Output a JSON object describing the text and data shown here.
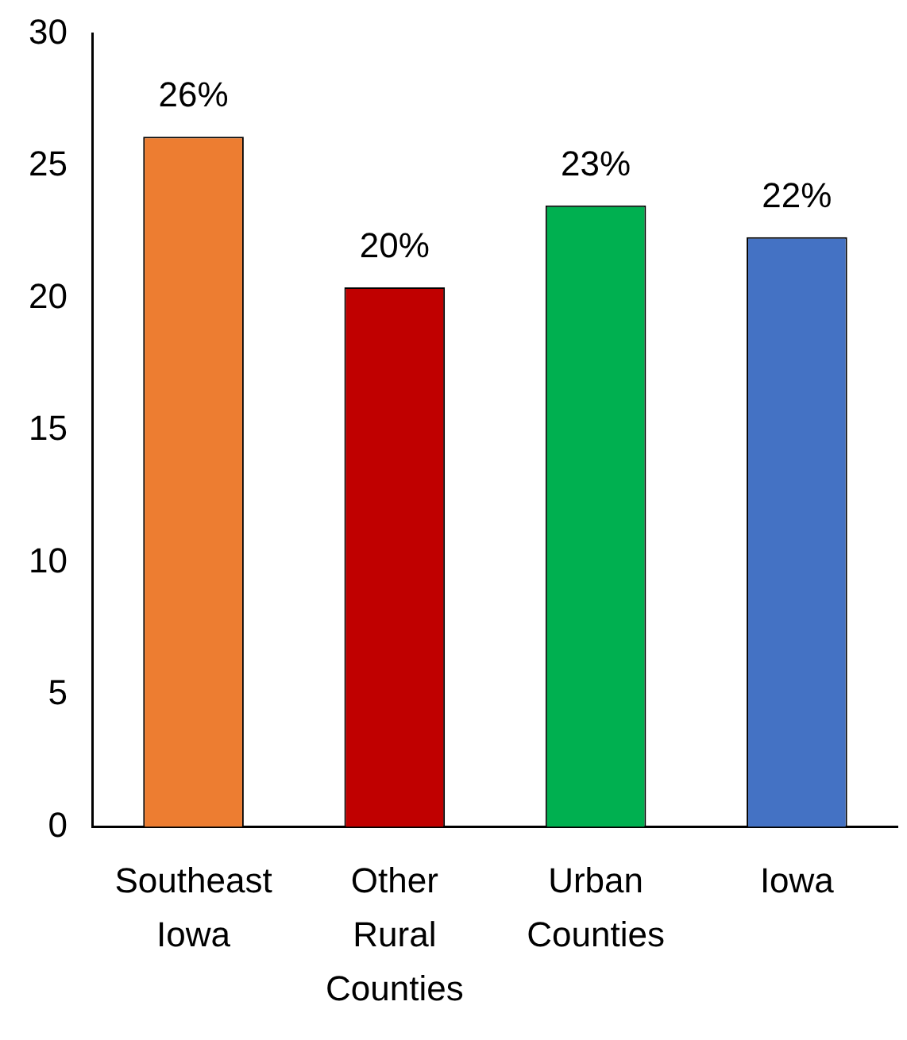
{
  "chart_data": {
    "type": "bar",
    "categories": [
      "Southeast Iowa",
      "Other Rural Counties",
      "Urban Counties",
      "Iowa"
    ],
    "values": [
      26.1,
      20.4,
      23.5,
      22.3
    ],
    "colors": [
      "#ed7d31",
      "#c00000",
      "#00b050",
      "#4472c4"
    ],
    "value_labels": [
      "26%",
      "20%",
      "23%",
      "22%"
    ],
    "ylim": [
      0,
      30
    ],
    "yticks": [
      0,
      5,
      10,
      15,
      20,
      25,
      30
    ],
    "grid": false,
    "legend": false
  }
}
